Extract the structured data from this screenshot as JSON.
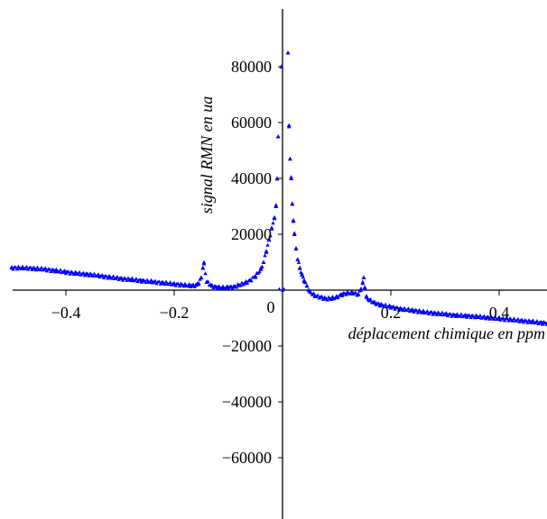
{
  "chart_data": {
    "type": "scatter",
    "title": "",
    "xlabel": "déplacement chimique en ppm",
    "ylabel": "signal RMN en ua",
    "xlim": [
      -0.5,
      0.5
    ],
    "ylim": [
      -82000,
      96000
    ],
    "x_ticks": [
      {
        "value": -0.4,
        "label": "-0.4"
      },
      {
        "value": -0.2,
        "label": "-0.2"
      },
      {
        "value": 0.2,
        "label": "0.2"
      },
      {
        "value": 0.4,
        "label": "0.4"
      }
    ],
    "y_ticks": [
      {
        "value": 80000,
        "label": "80000"
      },
      {
        "value": 60000,
        "label": "60000"
      },
      {
        "value": 40000,
        "label": "40000"
      },
      {
        "value": 20000,
        "label": "20000"
      },
      {
        "value": -20000,
        "label": "-20000"
      },
      {
        "value": -40000,
        "label": "-40000"
      },
      {
        "value": -60000,
        "label": "-60000"
      }
    ],
    "origin_label": "0",
    "grid": false,
    "marker_color": "#0000ff",
    "x": [
      -0.5,
      -0.48,
      -0.46,
      -0.44,
      -0.42,
      -0.4,
      -0.38,
      -0.36,
      -0.34,
      -0.32,
      -0.3,
      -0.28,
      -0.26,
      -0.24,
      -0.22,
      -0.2,
      -0.18,
      -0.17,
      -0.16,
      -0.155,
      -0.15,
      -0.147,
      -0.145,
      -0.14,
      -0.13,
      -0.12,
      -0.11,
      -0.1,
      -0.09,
      -0.08,
      -0.07,
      -0.06,
      -0.05,
      -0.04,
      -0.035,
      -0.03,
      -0.025,
      -0.02,
      -0.015,
      -0.012,
      -0.01,
      -0.008,
      -0.006,
      -0.004,
      -0.002,
      0.0,
      0.005,
      0.01,
      0.012,
      0.014,
      0.016,
      0.018,
      0.02,
      0.022,
      0.025,
      0.028,
      0.032,
      0.036,
      0.04,
      0.045,
      0.05,
      0.06,
      0.07,
      0.08,
      0.09,
      0.1,
      0.11,
      0.12,
      0.13,
      0.14,
      0.145,
      0.148,
      0.15,
      0.152,
      0.155,
      0.16,
      0.17,
      0.18,
      0.2,
      0.22,
      0.24,
      0.26,
      0.28,
      0.3,
      0.32,
      0.34,
      0.36,
      0.38,
      0.4,
      0.42,
      0.44,
      0.46,
      0.48,
      0.5
    ],
    "y": [
      8000,
      8000,
      7800,
      7500,
      7000,
      6500,
      6000,
      5700,
      5200,
      4700,
      4200,
      3800,
      3400,
      3000,
      2600,
      2200,
      1800,
      1600,
      1800,
      2500,
      4500,
      8000,
      9500,
      3000,
      1500,
      1000,
      900,
      1000,
      1200,
      1800,
      2500,
      3500,
      5000,
      7500,
      10000,
      14000,
      18000,
      22000,
      26000,
      30000,
      40000,
      55000,
      0,
      0,
      80000,
      0,
      0,
      85000,
      59000,
      47000,
      40000,
      31000,
      25000,
      20000,
      15000,
      11000,
      8000,
      5500,
      3500,
      1500,
      -500,
      -2000,
      -2500,
      -3000,
      -3000,
      -2500,
      -1500,
      -1000,
      -1000,
      -1500,
      500,
      2500,
      4500,
      1000,
      -2500,
      -3500,
      -4500,
      -5200,
      -6000,
      -6800,
      -7200,
      -7800,
      -8200,
      -8600,
      -9000,
      -9200,
      -9500,
      -9800,
      -10200,
      -10500,
      -10900,
      -11300,
      -11700,
      -12000
    ]
  }
}
